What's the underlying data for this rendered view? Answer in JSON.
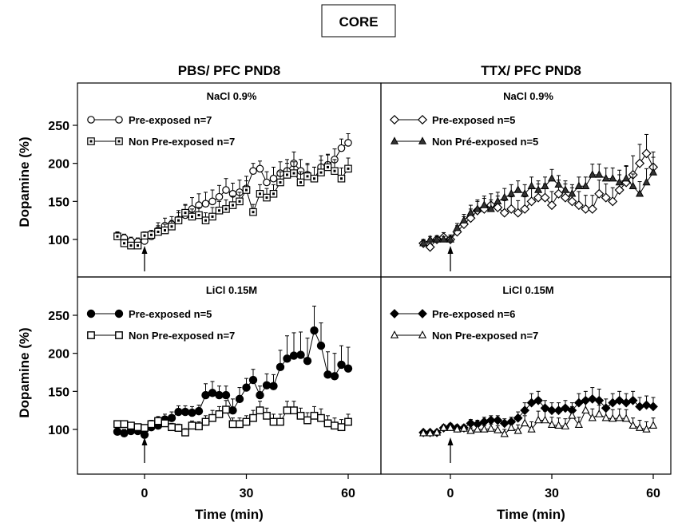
{
  "figure_label": "CORE",
  "column_titles": [
    "PBS/ PFC PND8",
    "TTX/ PFC PND8"
  ],
  "y_label": "Dopamine (%)",
  "x_label": "Time (min)",
  "chart_data": [
    {
      "type": "line",
      "title": "NaCl 0.9%",
      "column": "PBS/ PFC PND8",
      "xlim": [
        -12,
        65
      ],
      "ylim": [
        50,
        290
      ],
      "yticks": [
        100,
        150,
        200,
        250
      ],
      "xticks": [
        0,
        30,
        60
      ],
      "x": [
        -8,
        -6,
        -4,
        -2,
        0,
        2,
        4,
        6,
        8,
        10,
        12,
        14,
        16,
        18,
        20,
        22,
        24,
        26,
        28,
        30,
        32,
        34,
        36,
        38,
        40,
        42,
        44,
        46,
        48,
        50,
        52,
        54,
        56,
        58,
        60
      ],
      "series": [
        {
          "name": "Pre-exposed  n=7",
          "marker": "circle-open",
          "values": [
            105,
            102,
            98,
            97,
            98,
            104,
            112,
            118,
            120,
            126,
            132,
            140,
            145,
            147,
            150,
            156,
            165,
            160,
            162,
            167,
            190,
            193,
            175,
            180,
            187,
            190,
            200,
            190,
            185,
            180,
            195,
            198,
            205,
            220,
            227
          ],
          "errors": [
            5,
            5,
            5,
            5,
            5,
            6,
            10,
            10,
            10,
            12,
            14,
            15,
            15,
            15,
            15,
            15,
            15,
            14,
            16,
            16,
            10,
            10,
            14,
            15,
            15,
            15,
            15,
            15,
            15,
            15,
            15,
            14,
            14,
            12,
            12
          ]
        },
        {
          "name": "Non Pre-exposed  n=7",
          "marker": "square-dot",
          "values": [
            104,
            95,
            92,
            92,
            105,
            106,
            110,
            112,
            117,
            125,
            135,
            130,
            132,
            125,
            130,
            138,
            140,
            145,
            150,
            165,
            136,
            160,
            155,
            160,
            175,
            185,
            187,
            175,
            183,
            180,
            188,
            195,
            190,
            180,
            193
          ],
          "errors": [
            5,
            5,
            4,
            4,
            5,
            6,
            8,
            8,
            8,
            10,
            10,
            10,
            10,
            10,
            12,
            12,
            12,
            12,
            12,
            12,
            10,
            12,
            12,
            12,
            14,
            15,
            15,
            14,
            15,
            15,
            16,
            16,
            15,
            14,
            14
          ]
        }
      ]
    },
    {
      "type": "line",
      "title": "NaCl 0.9%",
      "column": "TTX/ PFC PND8",
      "xlim": [
        -12,
        65
      ],
      "ylim": [
        50,
        290
      ],
      "yticks": [
        100,
        150,
        200,
        250
      ],
      "xticks": [
        0,
        30,
        60
      ],
      "x": [
        -8,
        -6,
        -4,
        -2,
        0,
        2,
        4,
        6,
        8,
        10,
        12,
        14,
        16,
        18,
        20,
        22,
        24,
        26,
        28,
        30,
        32,
        34,
        36,
        38,
        40,
        42,
        44,
        46,
        48,
        50,
        52,
        54,
        56,
        58,
        60
      ],
      "series": [
        {
          "name": "Pre-exposed  n=5",
          "marker": "diamond-open",
          "values": [
            95,
            90,
            100,
            103,
            100,
            110,
            120,
            128,
            138,
            140,
            145,
            142,
            135,
            140,
            135,
            140,
            150,
            155,
            155,
            145,
            160,
            155,
            150,
            145,
            140,
            140,
            160,
            155,
            150,
            165,
            175,
            185,
            200,
            213,
            195
          ],
          "errors": [
            5,
            5,
            5,
            6,
            6,
            8,
            10,
            12,
            14,
            14,
            15,
            15,
            16,
            16,
            16,
            16,
            18,
            18,
            18,
            18,
            18,
            18,
            18,
            18,
            18,
            18,
            18,
            18,
            18,
            20,
            22,
            25,
            25,
            25,
            20
          ]
        },
        {
          "name": "Non Pré-exposed  n=5",
          "marker": "triangle-filled",
          "values": [
            95,
            100,
            100,
            100,
            100,
            115,
            125,
            135,
            140,
            145,
            140,
            150,
            155,
            160,
            165,
            160,
            170,
            165,
            170,
            180,
            172,
            165,
            160,
            170,
            170,
            185,
            185,
            180,
            180,
            175,
            180,
            170,
            160,
            175,
            188
          ],
          "errors": [
            4,
            4,
            4,
            4,
            4,
            6,
            8,
            10,
            10,
            12,
            12,
            12,
            12,
            12,
            12,
            12,
            12,
            12,
            12,
            12,
            12,
            12,
            12,
            12,
            12,
            14,
            14,
            14,
            14,
            16,
            16,
            16,
            16,
            18,
            20
          ]
        }
      ]
    },
    {
      "type": "line",
      "title": "LiCl 0.15M",
      "column": "PBS/ PFC PND8",
      "xlim": [
        -12,
        65
      ],
      "ylim": [
        20,
        290
      ],
      "yticks": [
        100,
        150,
        200,
        250
      ],
      "xticks": [
        0,
        30,
        60
      ],
      "x": [
        -8,
        -6,
        -4,
        -2,
        0,
        2,
        4,
        6,
        8,
        10,
        12,
        14,
        16,
        18,
        20,
        22,
        24,
        26,
        28,
        30,
        32,
        34,
        36,
        38,
        40,
        42,
        44,
        46,
        48,
        50,
        52,
        54,
        56,
        58,
        60
      ],
      "series": [
        {
          "name": "Pre-exposed  n=5",
          "marker": "circle-filled",
          "values": [
            97,
            95,
            98,
            98,
            93,
            103,
            105,
            113,
            115,
            123,
            123,
            122,
            124,
            145,
            148,
            145,
            145,
            125,
            140,
            155,
            165,
            145,
            158,
            157,
            182,
            193,
            197,
            198,
            190,
            230,
            210,
            172,
            170,
            185,
            180
          ],
          "errors": [
            5,
            5,
            5,
            5,
            6,
            6,
            6,
            7,
            8,
            8,
            8,
            8,
            8,
            15,
            15,
            12,
            12,
            15,
            15,
            12,
            14,
            12,
            15,
            15,
            22,
            30,
            30,
            30,
            30,
            32,
            30,
            30,
            30,
            25,
            28
          ]
        },
        {
          "name": "Non Pre-exposed  n=7",
          "marker": "square-open",
          "values": [
            107,
            107,
            105,
            103,
            102,
            107,
            111,
            108,
            103,
            102,
            96,
            105,
            104,
            110,
            115,
            120,
            126,
            107,
            107,
            110,
            115,
            125,
            118,
            110,
            110,
            125,
            125,
            118,
            112,
            118,
            115,
            108,
            105,
            103,
            110
          ],
          "errors": [
            4,
            4,
            4,
            4,
            4,
            5,
            6,
            6,
            5,
            5,
            5,
            6,
            6,
            8,
            10,
            10,
            12,
            8,
            8,
            8,
            10,
            12,
            10,
            10,
            10,
            12,
            12,
            10,
            10,
            12,
            12,
            10,
            10,
            10,
            10
          ]
        }
      ]
    },
    {
      "type": "line",
      "title": "LiCl 0.15M",
      "column": "TTX/ PFC PND8",
      "xlim": [
        -12,
        65
      ],
      "ylim": [
        20,
        290
      ],
      "yticks": [
        100,
        150,
        200,
        250
      ],
      "xticks": [
        0,
        30,
        60
      ],
      "x": [
        -8,
        -6,
        -4,
        -2,
        0,
        2,
        4,
        6,
        8,
        10,
        12,
        14,
        16,
        18,
        20,
        22,
        24,
        26,
        28,
        30,
        32,
        34,
        36,
        38,
        40,
        42,
        44,
        46,
        48,
        50,
        52,
        54,
        56,
        58,
        60
      ],
      "series": [
        {
          "name": "Pre-exposed  n=6",
          "marker": "diamond-filled",
          "values": [
            96,
            96,
            96,
            102,
            104,
            102,
            102,
            108,
            107,
            110,
            112,
            112,
            108,
            110,
            115,
            125,
            135,
            138,
            128,
            125,
            125,
            128,
            125,
            135,
            138,
            140,
            138,
            128,
            135,
            138,
            135,
            138,
            130,
            132,
            130
          ],
          "errors": [
            3,
            3,
            3,
            4,
            4,
            4,
            4,
            5,
            5,
            6,
            6,
            6,
            6,
            6,
            8,
            10,
            12,
            12,
            10,
            10,
            10,
            10,
            10,
            12,
            12,
            15,
            15,
            12,
            12,
            12,
            12,
            12,
            12,
            12,
            12
          ]
        },
        {
          "name": "Non Pre-exposed  n=7",
          "marker": "triangle-open",
          "values": [
            95,
            95,
            96,
            102,
            102,
            100,
            101,
            98,
            100,
            100,
            101,
            99,
            94,
            102,
            98,
            108,
            100,
            112,
            112,
            106,
            105,
            104,
            118,
            106,
            125,
            115,
            120,
            115,
            114,
            115,
            114,
            105,
            102,
            100,
            105
          ],
          "errors": [
            3,
            3,
            3,
            4,
            4,
            4,
            4,
            4,
            5,
            5,
            6,
            6,
            6,
            8,
            8,
            10,
            10,
            12,
            12,
            10,
            10,
            10,
            12,
            10,
            14,
            12,
            12,
            12,
            12,
            12,
            12,
            10,
            10,
            10,
            10
          ]
        }
      ]
    }
  ]
}
